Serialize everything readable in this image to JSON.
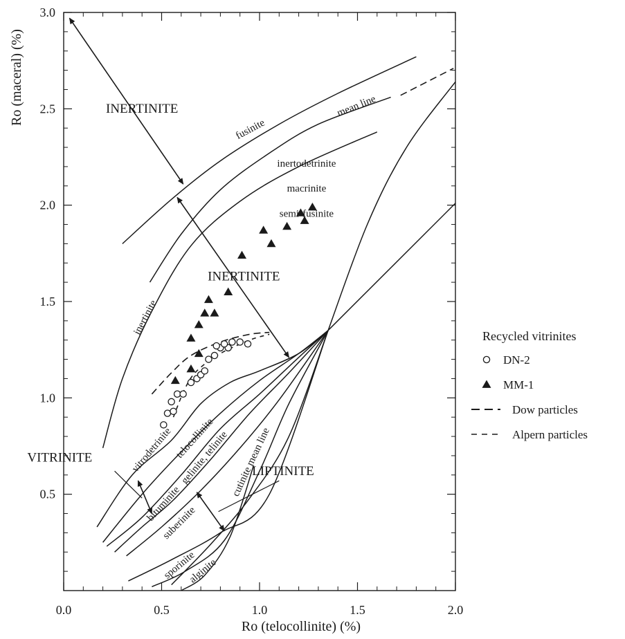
{
  "chart_data": {
    "type": "scatter",
    "xlabel": "Ro (telocollinite) (%)",
    "ylabel": "Ro (maceral) (%)",
    "xlim": [
      0.0,
      2.0
    ],
    "ylim": [
      0.0,
      3.0
    ],
    "x_ticks": [
      {
        "value": 0.0,
        "label": "0.0"
      },
      {
        "value": 0.5,
        "label": "0.5"
      },
      {
        "value": 1.0,
        "label": "1.0"
      },
      {
        "value": 1.5,
        "label": "1.5"
      },
      {
        "value": 2.0,
        "label": "2.0"
      }
    ],
    "y_ticks": [
      {
        "value": 0.5,
        "label": "0.5"
      },
      {
        "value": 1.0,
        "label": "1.0"
      },
      {
        "value": 1.5,
        "label": "1.5"
      },
      {
        "value": 2.0,
        "label": "2.0"
      },
      {
        "value": 2.5,
        "label": "2.5"
      },
      {
        "value": 3.0,
        "label": "3.0"
      }
    ],
    "legend": {
      "title": "Recycled vitrinites",
      "placement": "right",
      "entries": [
        {
          "label": "DN-2",
          "marker": "open-circle"
        },
        {
          "label": "MM-1",
          "marker": "filled-triangle"
        },
        {
          "label": "Dow  particles",
          "marker": "long-dash"
        },
        {
          "label": "Alpern particles",
          "marker": "short-dash"
        }
      ]
    },
    "series": [
      {
        "name": "DN-2",
        "marker": "open-circle",
        "points": [
          [
            0.51,
            0.86
          ],
          [
            0.53,
            0.92
          ],
          [
            0.55,
            0.98
          ],
          [
            0.56,
            0.93
          ],
          [
            0.58,
            1.02
          ],
          [
            0.61,
            1.02
          ],
          [
            0.65,
            1.08
          ],
          [
            0.68,
            1.1
          ],
          [
            0.7,
            1.12
          ],
          [
            0.72,
            1.14
          ],
          [
            0.74,
            1.2
          ],
          [
            0.77,
            1.22
          ],
          [
            0.8,
            1.26
          ],
          [
            0.84,
            1.26
          ],
          [
            0.86,
            1.29
          ],
          [
            0.9,
            1.29
          ],
          [
            0.94,
            1.28
          ],
          [
            0.78,
            1.27
          ],
          [
            0.82,
            1.28
          ]
        ]
      },
      {
        "name": "MM-1",
        "marker": "filled-triangle",
        "points": [
          [
            0.57,
            1.09
          ],
          [
            0.65,
            1.15
          ],
          [
            0.69,
            1.23
          ],
          [
            0.65,
            1.31
          ],
          [
            0.69,
            1.38
          ],
          [
            0.72,
            1.44
          ],
          [
            0.77,
            1.44
          ],
          [
            0.74,
            1.51
          ],
          [
            0.84,
            1.55
          ],
          [
            0.91,
            1.74
          ],
          [
            1.02,
            1.87
          ],
          [
            1.06,
            1.8
          ],
          [
            1.14,
            1.89
          ],
          [
            1.21,
            1.96
          ],
          [
            1.23,
            1.92
          ],
          [
            1.27,
            1.99
          ]
        ]
      }
    ],
    "curves": [
      {
        "name": "fusinite",
        "style": "solid",
        "points": [
          [
            0.3,
            1.8
          ],
          [
            0.55,
            2.03
          ],
          [
            0.8,
            2.23
          ],
          [
            1.1,
            2.42
          ],
          [
            1.4,
            2.58
          ],
          [
            1.8,
            2.77
          ]
        ]
      },
      {
        "name": "mean line",
        "style": "solid",
        "points": [
          [
            0.44,
            1.6
          ],
          [
            0.6,
            1.85
          ],
          [
            0.8,
            2.08
          ],
          [
            1.05,
            2.27
          ],
          [
            1.3,
            2.42
          ],
          [
            1.67,
            2.56
          ]
        ]
      },
      {
        "name": "mean line extension",
        "style": "long-dash",
        "points": [
          [
            1.72,
            2.57
          ],
          [
            1.99,
            2.71
          ]
        ]
      },
      {
        "name": "inertinite",
        "style": "solid",
        "points": [
          [
            0.2,
            0.74
          ],
          [
            0.3,
            1.1
          ],
          [
            0.45,
            1.45
          ],
          [
            0.65,
            1.79
          ],
          [
            0.9,
            2.02
          ],
          [
            1.2,
            2.2
          ],
          [
            1.6,
            2.38
          ]
        ]
      },
      {
        "name": "inertinite lower",
        "style": "solid",
        "points": [
          [
            0.17,
            0.33
          ],
          [
            0.35,
            0.6
          ],
          [
            0.55,
            0.78
          ],
          [
            0.7,
            0.97
          ],
          [
            0.85,
            1.08
          ],
          [
            1.0,
            1.14
          ],
          [
            1.2,
            1.23
          ],
          [
            1.35,
            1.35
          ]
        ]
      },
      {
        "name": "telocollinite",
        "style": "solid",
        "points": [
          [
            0.2,
            0.25
          ],
          [
            0.4,
            0.5
          ],
          [
            0.6,
            0.72
          ],
          [
            0.8,
            0.92
          ],
          [
            1.0,
            1.09
          ],
          [
            1.2,
            1.23
          ],
          [
            1.35,
            1.35
          ]
        ]
      },
      {
        "name": "gelinite, telinite",
        "style": "solid",
        "points": [
          [
            0.22,
            0.23
          ],
          [
            0.4,
            0.38
          ],
          [
            0.6,
            0.6
          ],
          [
            0.8,
            0.84
          ],
          [
            1.0,
            1.02
          ],
          [
            1.2,
            1.21
          ],
          [
            1.35,
            1.35
          ]
        ]
      },
      {
        "name": "bituminite",
        "style": "solid",
        "points": [
          [
            0.26,
            0.2
          ],
          [
            0.4,
            0.33
          ],
          [
            0.56,
            0.47
          ],
          [
            0.75,
            0.68
          ],
          [
            0.95,
            0.92
          ],
          [
            1.15,
            1.13
          ],
          [
            1.35,
            1.35
          ]
        ]
      },
      {
        "name": "liptinite upper",
        "style": "solid",
        "points": [
          [
            0.32,
            0.18
          ],
          [
            0.5,
            0.33
          ],
          [
            0.7,
            0.52
          ],
          [
            0.9,
            0.74
          ],
          [
            1.1,
            0.99
          ],
          [
            1.35,
            1.35
          ]
        ]
      },
      {
        "name": "cutinite mean line",
        "style": "solid",
        "points": [
          [
            0.55,
            0.03
          ],
          [
            0.75,
            0.24
          ],
          [
            0.95,
            0.48
          ],
          [
            1.15,
            0.8
          ],
          [
            1.35,
            1.35
          ]
        ]
      },
      {
        "name": "suberinite",
        "style": "solid",
        "points": [
          [
            0.33,
            0.05
          ],
          [
            0.55,
            0.16
          ],
          [
            0.8,
            0.3
          ],
          [
            1.05,
            0.5
          ],
          [
            1.35,
            1.35
          ]
        ]
      },
      {
        "name": "sporinite",
        "style": "solid",
        "points": [
          [
            0.45,
            0.02
          ],
          [
            0.62,
            0.1
          ],
          [
            0.82,
            0.26
          ],
          [
            1.0,
            0.62
          ],
          [
            1.15,
            0.97
          ],
          [
            1.35,
            1.35
          ]
        ]
      },
      {
        "name": "alginite",
        "style": "solid",
        "points": [
          [
            0.6,
            0.0
          ],
          [
            0.72,
            0.08
          ],
          [
            0.85,
            0.28
          ],
          [
            0.97,
            0.65
          ]
        ]
      },
      {
        "name": "ro diagonal",
        "style": "solid",
        "points": [
          [
            1.35,
            1.35
          ],
          [
            2.0,
            2.01
          ]
        ]
      },
      {
        "name": "inertinite upper boundary",
        "style": "solid",
        "points": [
          [
            1.35,
            1.35
          ],
          [
            1.55,
            1.9
          ],
          [
            1.75,
            2.3
          ],
          [
            2.0,
            2.64
          ]
        ]
      },
      {
        "name": "Dow particles",
        "style": "long-dash",
        "points": [
          [
            0.45,
            1.02
          ],
          [
            0.55,
            1.13
          ],
          [
            0.65,
            1.22
          ],
          [
            0.8,
            1.29
          ],
          [
            0.95,
            1.33
          ],
          [
            1.05,
            1.34
          ]
        ]
      },
      {
        "name": "Alpern particles",
        "style": "short-dash",
        "points": [
          [
            0.56,
            0.9
          ],
          [
            0.62,
            1.05
          ],
          [
            0.68,
            1.14
          ],
          [
            0.8,
            1.23
          ],
          [
            0.95,
            1.3
          ],
          [
            1.05,
            1.33
          ]
        ]
      }
    ],
    "arrows": [
      {
        "from": [
          0.03,
          2.97
        ],
        "to": [
          0.61,
          2.11
        ]
      },
      {
        "from": [
          0.58,
          2.04
        ],
        "to": [
          1.15,
          1.21
        ]
      },
      {
        "from": [
          0.38,
          0.57
        ],
        "to": [
          0.45,
          0.4
        ]
      },
      {
        "from": [
          0.68,
          0.51
        ],
        "to": [
          0.82,
          0.31
        ]
      }
    ],
    "annotations": [
      {
        "text": "INERTINITE",
        "x": 0.4,
        "y": 2.48,
        "type": "region"
      },
      {
        "text": "INERTINITE",
        "x": 0.92,
        "y": 1.61,
        "type": "region"
      },
      {
        "text": "VITRINITE",
        "x": -0.02,
        "y": 0.67,
        "type": "region"
      },
      {
        "text": "LIPTINITE",
        "x": 1.12,
        "y": 0.6,
        "type": "region"
      },
      {
        "text": "fusinite",
        "x": 0.96,
        "y": 2.38,
        "type": "curve",
        "rotate": -28
      },
      {
        "text": "mean line",
        "x": 1.5,
        "y": 2.5,
        "type": "curve",
        "rotate": -22
      },
      {
        "text": "inertodetrinite",
        "x": 1.24,
        "y": 2.2,
        "type": "curve"
      },
      {
        "text": "macrinite",
        "x": 1.24,
        "y": 2.07,
        "type": "curve"
      },
      {
        "text": "semi-fusinite",
        "x": 1.24,
        "y": 1.94,
        "type": "curve"
      },
      {
        "text": "inertinite",
        "x": 0.43,
        "y": 1.41,
        "type": "curve",
        "rotate": -62
      },
      {
        "text": "vitrodetrinite",
        "x": 0.46,
        "y": 0.72,
        "type": "curve",
        "rotate": -50
      },
      {
        "text": "telocollinite",
        "x": 0.68,
        "y": 0.78,
        "type": "curve",
        "rotate": -48
      },
      {
        "text": "gelinite, telinite",
        "x": 0.73,
        "y": 0.68,
        "type": "curve",
        "rotate": -50
      },
      {
        "text": "bituminite",
        "x": 0.52,
        "y": 0.44,
        "type": "curve",
        "rotate": -48
      },
      {
        "text": "suberinite",
        "x": 0.6,
        "y": 0.34,
        "type": "curve",
        "rotate": -45
      },
      {
        "text": "cutinite mean line",
        "x": 0.97,
        "y": 0.66,
        "type": "curve",
        "rotate": -65
      },
      {
        "text": "sporinite",
        "x": 0.6,
        "y": 0.12,
        "type": "curve",
        "rotate": -40
      },
      {
        "text": "alginite",
        "x": 0.72,
        "y": 0.09,
        "type": "curve",
        "rotate": -40
      }
    ]
  }
}
